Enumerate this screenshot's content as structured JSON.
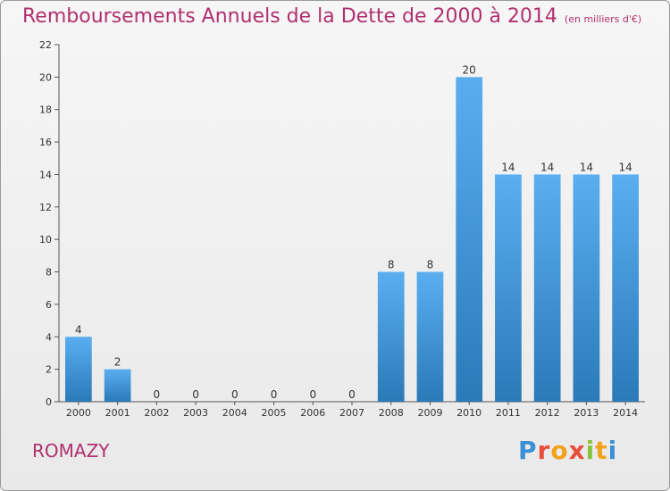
{
  "header": {
    "title": "Remboursements Annuels de la Dette de 2000 à 2014",
    "subtitle": "(en milliers d'€)"
  },
  "footer": {
    "commune": "ROMAZY",
    "logo_text": "Proxiti"
  },
  "colors": {
    "title": "#b0306e",
    "bar_light": "#5aaef0",
    "bar_dark": "#2a7ab8"
  },
  "chart_data": {
    "type": "bar",
    "title": "Remboursements Annuels de la Dette de 2000 à 2014",
    "subtitle": "(en milliers d'€)",
    "xlabel": "",
    "ylabel": "",
    "categories": [
      "2000",
      "2001",
      "2002",
      "2003",
      "2004",
      "2005",
      "2006",
      "2007",
      "2008",
      "2009",
      "2010",
      "2011",
      "2012",
      "2013",
      "2014"
    ],
    "values": [
      4,
      2,
      0,
      0,
      0,
      0,
      0,
      0,
      8,
      8,
      20,
      14,
      14,
      14,
      14
    ],
    "data_labels": [
      "4",
      "2",
      "0",
      "0",
      "0",
      "0",
      "0",
      "0",
      "8",
      "8",
      "20",
      "14",
      "14",
      "14",
      "14"
    ],
    "ylim": [
      0,
      22
    ],
    "yticks": [
      0,
      2,
      4,
      6,
      8,
      10,
      12,
      14,
      16,
      18,
      20,
      22
    ],
    "ytick_labels": [
      "0",
      "2",
      "4",
      "6",
      "8",
      "10",
      "12",
      "14",
      "16",
      "18",
      "20",
      "22"
    ],
    "grid": false,
    "legend": "none"
  }
}
